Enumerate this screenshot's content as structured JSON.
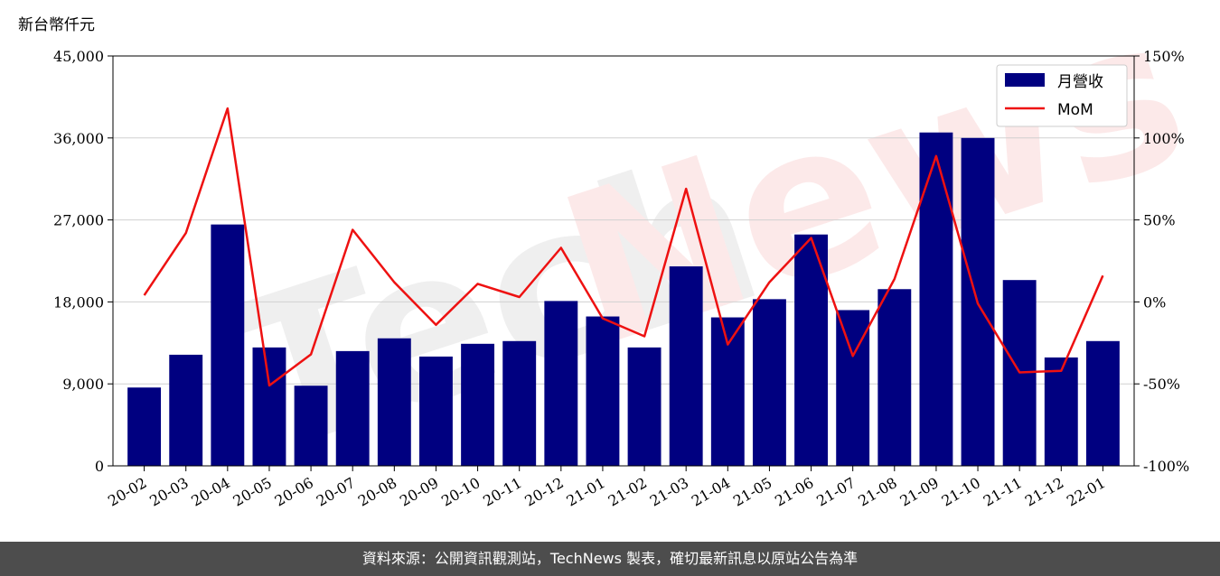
{
  "chart_data": {
    "type": "bar",
    "y_unit_label": "新台幣仟元",
    "categories": [
      "20-02",
      "20-03",
      "20-04",
      "20-05",
      "20-06",
      "20-07",
      "20-08",
      "20-09",
      "20-10",
      "20-11",
      "20-12",
      "21-01",
      "21-02",
      "21-03",
      "21-04",
      "21-05",
      "21-06",
      "21-07",
      "21-08",
      "21-09",
      "21-10",
      "21-11",
      "21-12",
      "22-01"
    ],
    "series": [
      {
        "name": "月營收",
        "type": "bar",
        "axis": "left",
        "color": "#000080",
        "values": [
          8600,
          12200,
          26500,
          13000,
          8800,
          12600,
          14000,
          12000,
          13400,
          13700,
          18100,
          16400,
          13000,
          21900,
          16300,
          18300,
          25400,
          17100,
          19400,
          36600,
          36000,
          20400,
          11900,
          13700
        ]
      },
      {
        "name": "MoM",
        "type": "line",
        "axis": "right",
        "color": "#ee1111",
        "values": [
          4,
          42,
          118,
          -51,
          -32,
          44,
          12,
          -14,
          11,
          3,
          33,
          -10,
          -21,
          69,
          -26,
          12,
          39,
          -33,
          14,
          89,
          -1,
          -43,
          -42,
          16
        ]
      }
    ],
    "left_axis": {
      "ylim": [
        0,
        45000
      ],
      "ticks": [
        "0",
        "9,000",
        "18,000",
        "27,000",
        "36,000",
        "45,000"
      ]
    },
    "right_axis": {
      "ylim": [
        -100,
        150
      ],
      "ticks": [
        "-100%",
        "-50%",
        "0%",
        "50%",
        "100%",
        "150%"
      ]
    },
    "grid": "horizontal",
    "legend_position": "top-right"
  },
  "watermark": "TechNews",
  "footer": {
    "source": "資料來源：公開資訊觀測站，TechNews 製表，確切最新訊息以原站公告為準"
  }
}
